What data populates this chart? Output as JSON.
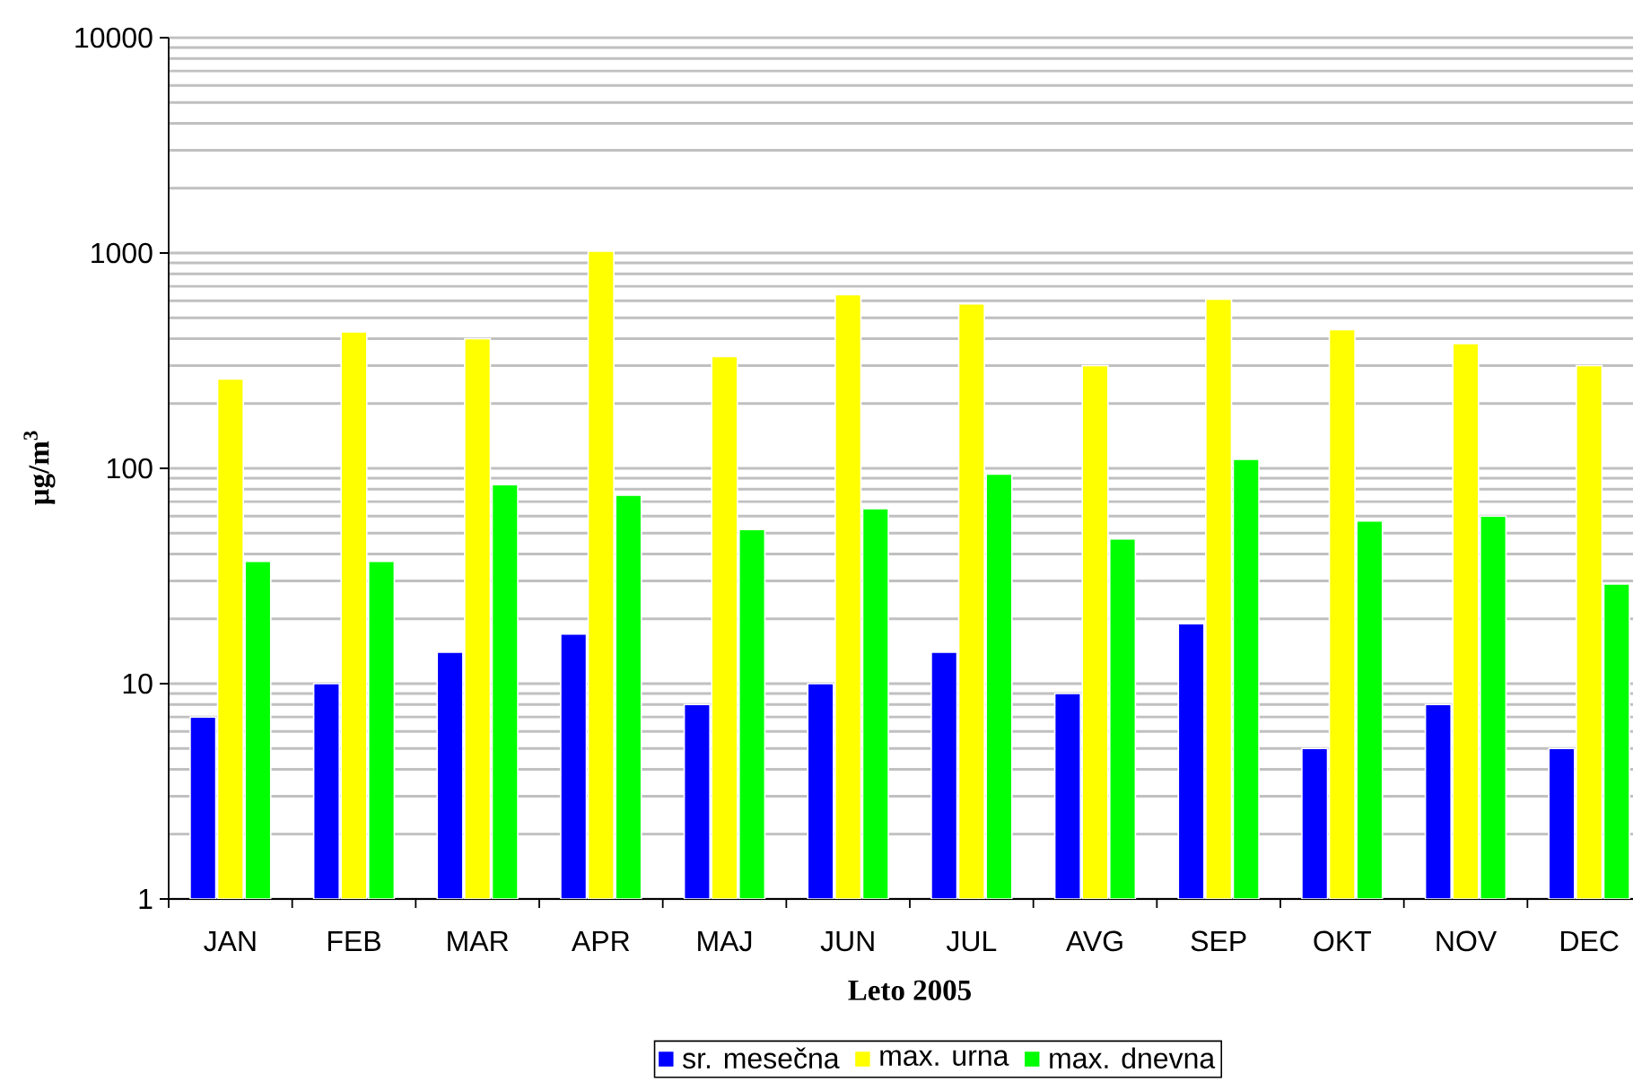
{
  "chart_data": {
    "type": "bar",
    "xlabel": "Leto 2005",
    "ylabel": "µg/m$^{3}$",
    "categories": [
      "JAN",
      "FEB",
      "MAR",
      "APR",
      "MAJ",
      "JUN",
      "JUL",
      "AVG",
      "SEP",
      "OKT",
      "NOV",
      "DEC"
    ],
    "series": [
      {
        "name": "sr. mesečna",
        "color": "#0000ff",
        "values": [
          7,
          10,
          14,
          17,
          8,
          10,
          14,
          9,
          19,
          5,
          8,
          5
        ]
      },
      {
        "name": "max. urna",
        "color": "#ffff00",
        "values": [
          260,
          430,
          400,
          1020,
          330,
          640,
          580,
          300,
          610,
          440,
          380,
          300
        ]
      },
      {
        "name": "max. dnevna",
        "color": "#00ff00",
        "values": [
          37,
          37,
          84,
          75,
          52,
          65,
          94,
          47,
          110,
          57,
          60,
          29
        ]
      }
    ],
    "log": true,
    "ylim": [
      1,
      10000
    ],
    "yticks": [
      1,
      10,
      100,
      1000,
      10000
    ],
    "grid": "y",
    "legend": "bottom"
  }
}
